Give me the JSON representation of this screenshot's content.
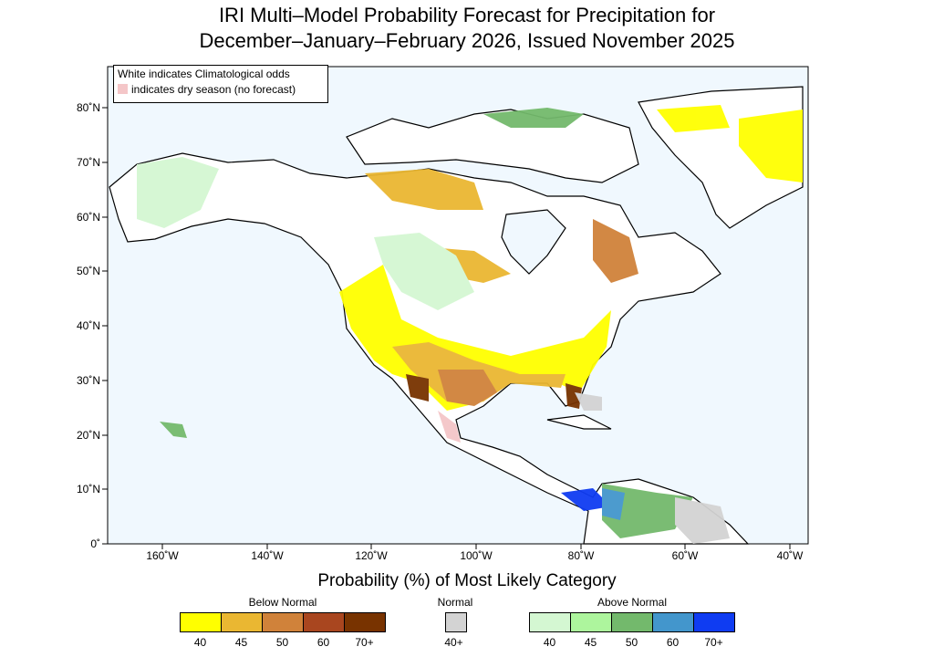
{
  "title": {
    "line1": "IRI Multi–Model Probability Forecast for Precipitation for",
    "line2": "December–January–February 2026, Issued November 2025"
  },
  "info_box": {
    "line1": "White indicates Climatological odds",
    "line2": "indicates dry season (no forecast)",
    "dry_color": "#f4c6c8"
  },
  "axes": {
    "lat_labels": [
      "80˚N",
      "70˚N",
      "60˚N",
      "50˚N",
      "40˚N",
      "30˚N",
      "20˚N",
      "10˚N",
      "0˚"
    ],
    "lon_labels": [
      "160˚W",
      "140˚W",
      "120˚W",
      "100˚W",
      "80˚W",
      "60˚W",
      "40˚W"
    ]
  },
  "legend": {
    "title": "Probability (%) of Most Likely Category",
    "below": {
      "label": "Below Normal",
      "ticks": [
        "40",
        "45",
        "50",
        "60",
        "70+"
      ],
      "colors": [
        "#ffff00",
        "#eab732",
        "#d0823a",
        "#a9461f",
        "#783300"
      ]
    },
    "normal": {
      "label": "Normal",
      "ticks": [
        "40+"
      ],
      "colors": [
        "#d3d3d3"
      ]
    },
    "above": {
      "label": "Above Normal",
      "ticks": [
        "40",
        "45",
        "50",
        "60",
        "70+"
      ],
      "colors": [
        "#d4f7d2",
        "#adf59d",
        "#73b96c",
        "#4396cc",
        "#0f3cf2"
      ]
    }
  },
  "colors": {
    "ocean": "#f0f8fe",
    "land": "#ffffff"
  }
}
